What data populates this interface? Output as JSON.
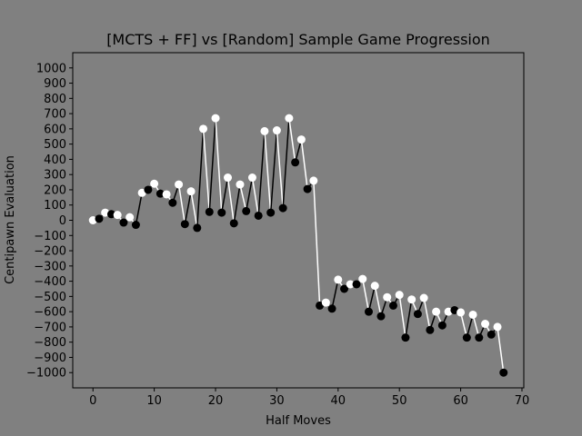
{
  "chart_data": {
    "type": "line",
    "title": "[MCTS + FF] vs [Random] Sample Game Progression",
    "xlabel": "Half Moves",
    "ylabel": "Centipawn Evaluation",
    "xlim": [
      -3.3,
      70.3
    ],
    "ylim": [
      -1100,
      1100
    ],
    "xticks": [
      0,
      10,
      20,
      30,
      40,
      50,
      60,
      70
    ],
    "yticks": [
      -1000,
      -900,
      -800,
      -700,
      -600,
      -500,
      -400,
      -300,
      -200,
      -100,
      0,
      100,
      200,
      300,
      400,
      500,
      600,
      700,
      800,
      900,
      1000
    ],
    "grid": false,
    "colors": {
      "background": "#808080",
      "white_move": "#ffffff",
      "black_move": "#000000"
    },
    "x": [
      0,
      1,
      2,
      3,
      4,
      5,
      6,
      7,
      8,
      9,
      10,
      11,
      12,
      13,
      14,
      15,
      16,
      17,
      18,
      19,
      20,
      21,
      22,
      23,
      24,
      25,
      26,
      27,
      28,
      29,
      30,
      31,
      32,
      33,
      34,
      35,
      36,
      37,
      38,
      39,
      40,
      41,
      42,
      43,
      44,
      45,
      46,
      47,
      48,
      49,
      50,
      51,
      52,
      53,
      54,
      55,
      56,
      57,
      58,
      59,
      60,
      61,
      62,
      63,
      64,
      65,
      66,
      67
    ],
    "y": [
      0,
      10,
      50,
      40,
      35,
      -15,
      20,
      -30,
      180,
      200,
      240,
      175,
      170,
      115,
      235,
      -25,
      190,
      -50,
      600,
      55,
      670,
      50,
      280,
      -20,
      235,
      60,
      280,
      30,
      585,
      50,
      590,
      80,
      670,
      380,
      530,
      205,
      260,
      -560,
      -540,
      -580,
      -390,
      -450,
      -420,
      -420,
      -385,
      -600,
      -430,
      -630,
      -505,
      -560,
      -490,
      -770,
      -520,
      -615,
      -510,
      -720,
      -600,
      -690,
      -600,
      -590,
      -605,
      -770,
      -620,
      -770,
      -680,
      -750,
      -700,
      -1000
    ]
  }
}
